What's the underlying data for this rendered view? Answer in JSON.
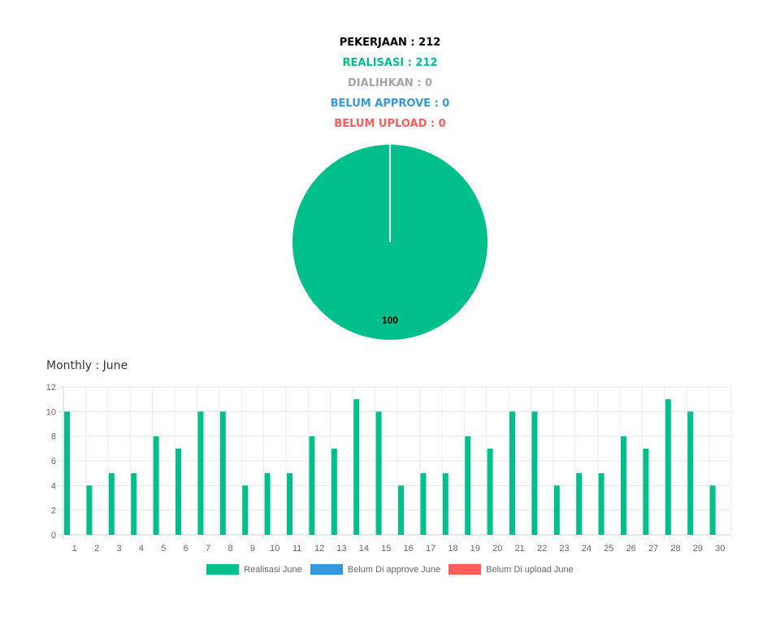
{
  "summary": {
    "pekerjaan": "PEKERJAAN : 212",
    "realisasi": "REALISASI : 212",
    "dialihkan": "DIALIHKAN : 0",
    "belum_approve": "BELUM APPROVE : 0",
    "belum_upload": "BELUM UPLOAD : 0"
  },
  "monthly_title": "Monthly : June",
  "chart_data": [
    {
      "type": "pie",
      "slices": [
        {
          "label": "Realisasi",
          "value": 100,
          "color": "#00BF8A"
        }
      ],
      "data_labels": [
        "100"
      ]
    },
    {
      "type": "bar",
      "categories": [
        "1",
        "2",
        "3",
        "4",
        "5",
        "6",
        "7",
        "8",
        "9",
        "10",
        "11",
        "12",
        "13",
        "14",
        "15",
        "16",
        "17",
        "18",
        "19",
        "20",
        "21",
        "22",
        "23",
        "24",
        "25",
        "26",
        "27",
        "28",
        "29",
        "30"
      ],
      "series": [
        {
          "name": "Realisasi June",
          "color": "#00BF8A",
          "values": [
            10,
            4,
            5,
            5,
            8,
            7,
            10,
            10,
            4,
            5,
            5,
            8,
            7,
            11,
            10,
            4,
            5,
            5,
            8,
            7,
            10,
            10,
            4,
            5,
            5,
            8,
            7,
            11,
            10,
            4
          ]
        },
        {
          "name": "Belum Di approve June",
          "color": "#3498DB",
          "values": [
            0,
            0,
            0,
            0,
            0,
            0,
            0,
            0,
            0,
            0,
            0,
            0,
            0,
            0,
            0,
            0,
            0,
            0,
            0,
            0,
            0,
            0,
            0,
            0,
            0,
            0,
            0,
            0,
            0,
            0
          ]
        },
        {
          "name": "Belum Di upload June",
          "color": "#FF5C5C",
          "values": [
            0,
            0,
            0,
            0,
            0,
            0,
            0,
            0,
            0,
            0,
            0,
            0,
            0,
            0,
            0,
            0,
            0,
            0,
            0,
            0,
            0,
            0,
            0,
            0,
            0,
            0,
            0,
            0,
            0,
            0
          ]
        }
      ],
      "yticks": [
        0,
        2,
        4,
        6,
        8,
        10,
        12
      ],
      "ylim": [
        0,
        12
      ],
      "grid": true,
      "legend_position": "bottom"
    }
  ]
}
